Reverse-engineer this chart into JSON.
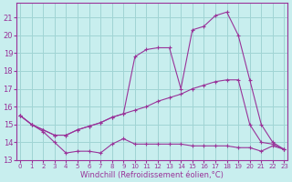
{
  "bg_color": "#c8eeee",
  "grid_color": "#a0d4d4",
  "line_color": "#993399",
  "xlim_min": -0.3,
  "xlim_max": 23.3,
  "ylim_min": 13,
  "ylim_max": 21.8,
  "yticks": [
    13,
    14,
    15,
    16,
    17,
    18,
    19,
    20,
    21
  ],
  "xticks": [
    0,
    1,
    2,
    3,
    4,
    5,
    6,
    7,
    8,
    9,
    10,
    11,
    12,
    13,
    14,
    15,
    16,
    17,
    18,
    19,
    20,
    21,
    22,
    23
  ],
  "xlabel": "Windchill (Refroidissement éolien,°C)",
  "line1_x": [
    0,
    1,
    2,
    3,
    4,
    5,
    6,
    7,
    8,
    9,
    10,
    11,
    12,
    13,
    14,
    15,
    16,
    17,
    18,
    19,
    20,
    21,
    22,
    23
  ],
  "line1_y": [
    15.5,
    15.0,
    14.6,
    14.0,
    13.4,
    13.5,
    13.5,
    13.4,
    13.9,
    14.2,
    13.9,
    13.9,
    13.9,
    13.9,
    13.9,
    13.8,
    13.8,
    13.8,
    13.8,
    13.7,
    13.7,
    13.5,
    13.8,
    13.6
  ],
  "line2_x": [
    0,
    1,
    2,
    3,
    4,
    5,
    6,
    7,
    8,
    9,
    10,
    11,
    12,
    13,
    14,
    15,
    16,
    17,
    18,
    19,
    20,
    21,
    22,
    23
  ],
  "line2_y": [
    15.5,
    15.0,
    14.7,
    14.4,
    14.4,
    14.7,
    14.9,
    15.1,
    15.4,
    15.6,
    15.8,
    16.0,
    16.3,
    16.5,
    16.7,
    17.0,
    17.2,
    17.4,
    17.5,
    17.5,
    15.0,
    14.0,
    13.9,
    13.6
  ],
  "line3_x": [
    0,
    1,
    2,
    3,
    4,
    5,
    6,
    7,
    8,
    9,
    10,
    11,
    12,
    13,
    14,
    15,
    16,
    17,
    18,
    19,
    20,
    21,
    22,
    23
  ],
  "line3_y": [
    15.5,
    15.0,
    14.7,
    14.4,
    14.4,
    14.7,
    14.9,
    15.1,
    15.4,
    15.6,
    18.8,
    19.2,
    19.3,
    19.3,
    17.0,
    20.3,
    20.5,
    21.1,
    21.3,
    20.0,
    17.5,
    15.0,
    14.0,
    13.6
  ]
}
